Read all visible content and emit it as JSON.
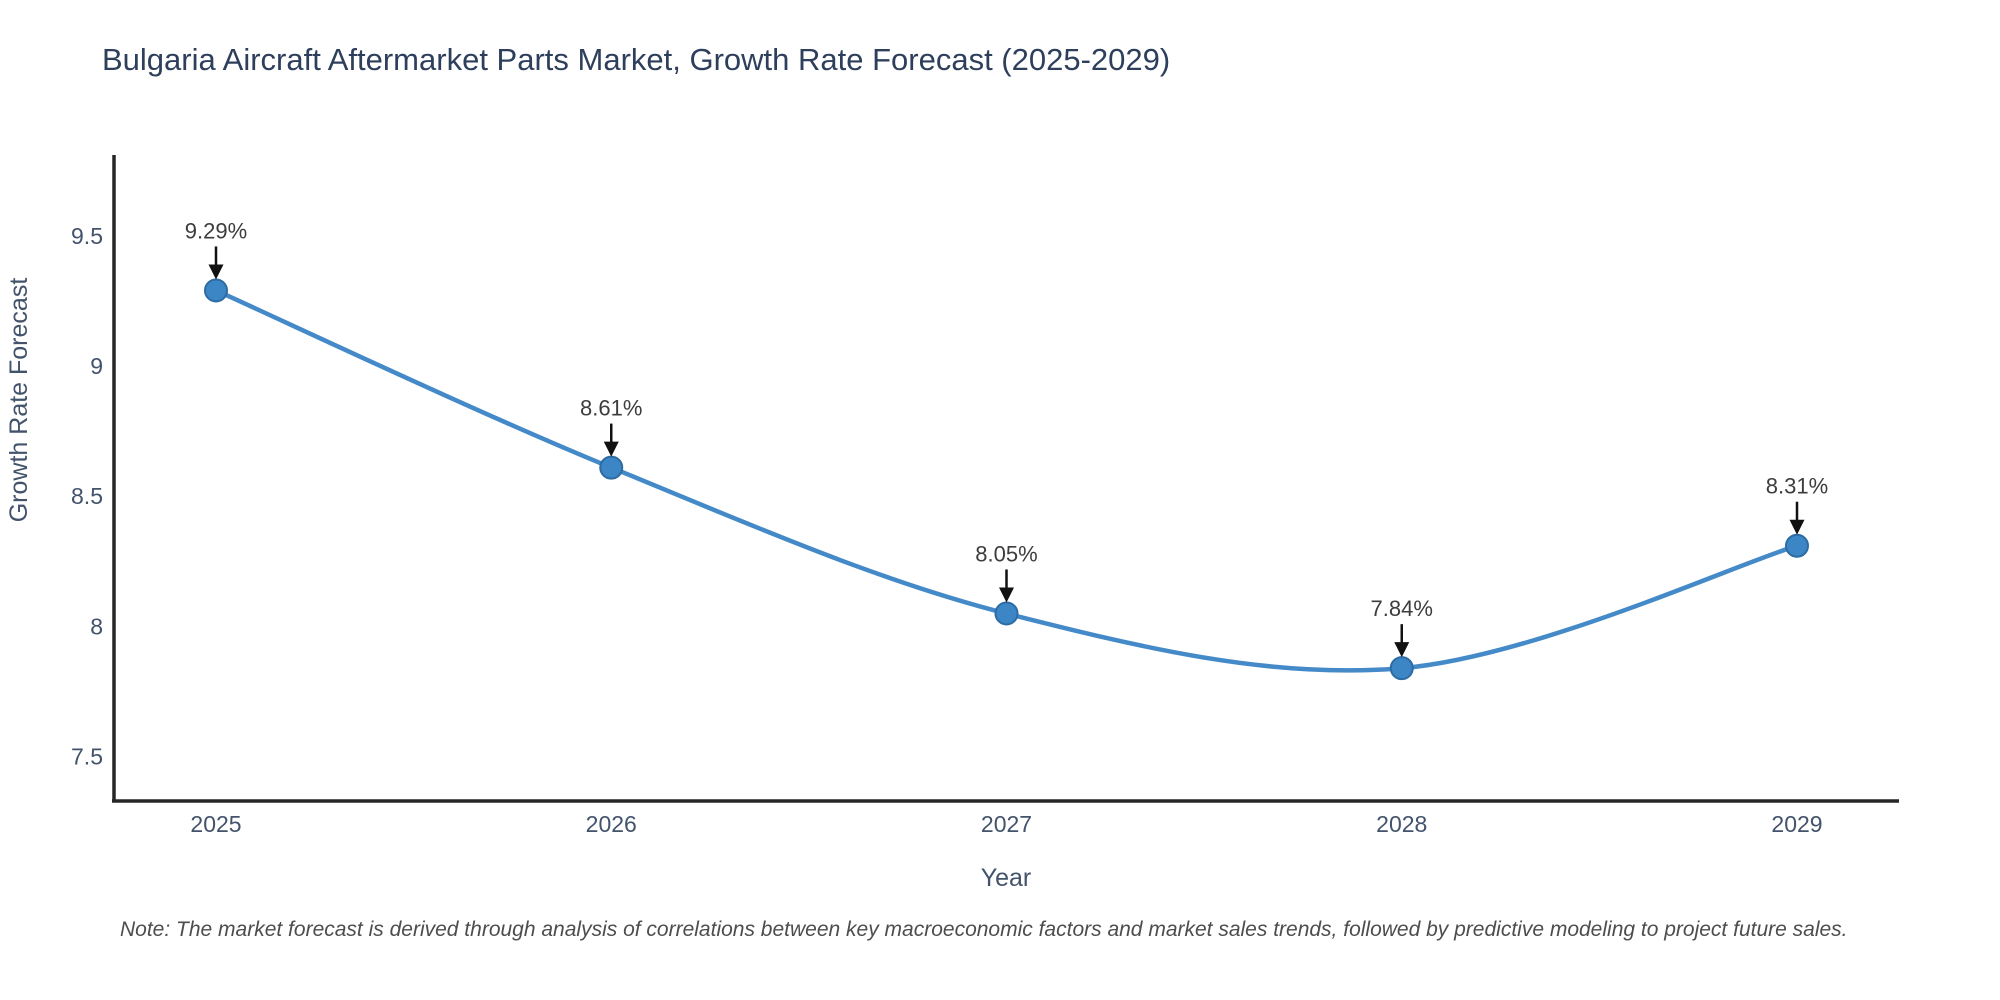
{
  "page": {
    "note": "Note: The market forecast is derived through analysis of correlations between key macroeconomic factors and market sales trends, followed by predictive modeling to project future sales."
  },
  "chart_data": {
    "type": "line",
    "title": "Bulgaria Aircraft Aftermarket Parts Market, Growth Rate Forecast (2025-2029)",
    "xlabel": "Year",
    "ylabel": "Growth Rate Forecast",
    "categories": [
      "2025",
      "2026",
      "2027",
      "2028",
      "2029"
    ],
    "values": [
      9.29,
      8.61,
      8.05,
      7.84,
      8.31
    ],
    "point_labels": [
      "9.29%",
      "8.61%",
      "8.05%",
      "7.84%",
      "8.31%"
    ],
    "yticks": [
      7.5,
      8,
      8.5,
      9,
      9.5
    ],
    "ytick_labels": [
      "7.5",
      "8",
      "8.5",
      "9",
      "9.5"
    ],
    "ylim": [
      7.33,
      9.81
    ],
    "line_shape": "spline",
    "grid": false,
    "legend_position": "none",
    "colors": {
      "line": "#4489c8",
      "marker_fill": "#3d86c6",
      "marker_edge": "#2c6ba3",
      "annotation_arrow": "#111111",
      "axis_line": "#262626",
      "title_text": "#2e3f5c",
      "tick_text": "#42536b",
      "annotation_text": "#3d3d3d",
      "note_text": "#4d4d4d"
    }
  }
}
